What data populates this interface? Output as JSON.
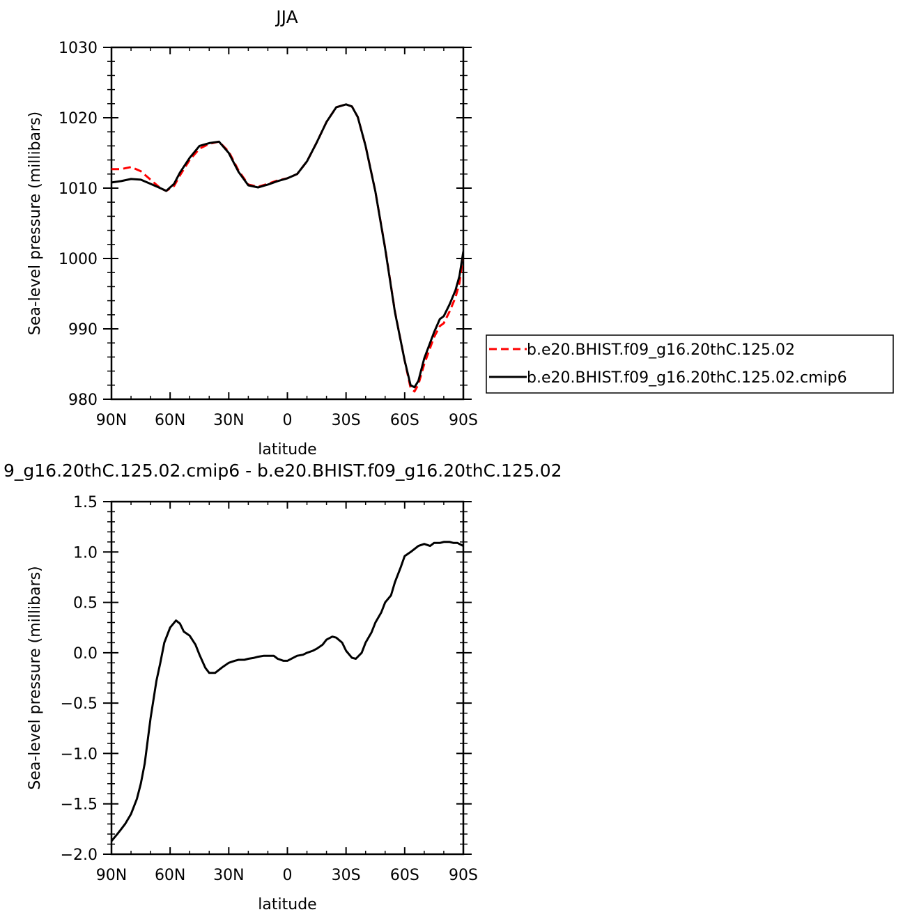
{
  "chart_data": [
    {
      "type": "line",
      "title": "JJA",
      "xlabel": "latitude",
      "ylabel": "Sea-level pressure (millibars)",
      "xlim": [
        90,
        -90
      ],
      "ylim": [
        980,
        1030
      ],
      "x_ticks": [
        90,
        60,
        30,
        0,
        -30,
        -60,
        -90
      ],
      "x_tick_labels": [
        "90N",
        "60N",
        "30N",
        "0",
        "30S",
        "60S",
        "90S"
      ],
      "y_ticks": [
        980,
        990,
        1000,
        1010,
        1020,
        1030
      ],
      "y_tick_labels": [
        "980",
        "990",
        "1000",
        "1010",
        "1020",
        "1030"
      ],
      "legend_position": "right",
      "series": [
        {
          "name": "b.e20.BHIST.f09_g16.20thC.125.02",
          "color": "#ff0000",
          "dash": "dashed",
          "x": [
            90,
            85,
            80,
            75,
            70,
            65,
            62,
            58,
            55,
            50,
            45,
            40,
            35,
            30,
            25,
            20,
            15,
            10,
            5,
            0,
            -5,
            -10,
            -15,
            -20,
            -25,
            -30,
            -33,
            -36,
            -40,
            -45,
            -50,
            -55,
            -60,
            -63,
            -65,
            -67,
            -70,
            -75,
            -78,
            -80,
            -83,
            -86,
            -88,
            -90
          ],
          "y": [
            1012.7,
            1012.7,
            1013.0,
            1012.4,
            1011.2,
            1010.0,
            1009.6,
            1010.3,
            1011.8,
            1014.0,
            1015.6,
            1016.3,
            1016.6,
            1015.2,
            1012.5,
            1010.5,
            1010.2,
            1010.6,
            1011.1,
            1011.4,
            1012.0,
            1013.8,
            1016.5,
            1019.4,
            1021.5,
            1021.9,
            1021.6,
            1020.1,
            1016.0,
            1009.5,
            1001.5,
            992.5,
            985.5,
            981.6,
            981.1,
            982.1,
            985.0,
            988.8,
            990.4,
            990.8,
            992.5,
            994.5,
            996.5,
            1000.5
          ]
        },
        {
          "name": "b.e20.BHIST.f09_g16.20thC.125.02.cmip6",
          "color": "#000000",
          "dash": "solid",
          "x": [
            90,
            85,
            80,
            75,
            70,
            65,
            62,
            58,
            55,
            50,
            45,
            40,
            35,
            30,
            25,
            20,
            15,
            10,
            5,
            0,
            -5,
            -10,
            -15,
            -20,
            -25,
            -30,
            -33,
            -36,
            -40,
            -45,
            -50,
            -55,
            -60,
            -63,
            -65,
            -67,
            -70,
            -75,
            -78,
            -80,
            -83,
            -86,
            -88,
            -90
          ],
          "y": [
            1010.8,
            1011.0,
            1011.3,
            1011.2,
            1010.6,
            1010.0,
            1009.6,
            1010.6,
            1012.2,
            1014.3,
            1016.0,
            1016.4,
            1016.6,
            1015.0,
            1012.3,
            1010.4,
            1010.1,
            1010.5,
            1011.0,
            1011.4,
            1012.0,
            1013.8,
            1016.5,
            1019.4,
            1021.5,
            1021.9,
            1021.6,
            1020.1,
            1016.0,
            1009.5,
            1001.4,
            992.4,
            985.5,
            982.0,
            981.7,
            982.6,
            985.8,
            989.5,
            991.4,
            991.8,
            993.5,
            995.5,
            997.5,
            1001.0
          ]
        }
      ]
    },
    {
      "type": "line",
      "title": "9_g16.20thC.125.02.cmip6 - b.e20.BHIST.f09_g16.20thC.125.02",
      "xlabel": "latitude",
      "ylabel": "Sea-level pressure (millibars)",
      "xlim": [
        90,
        -90
      ],
      "ylim": [
        -2.0,
        1.5
      ],
      "x_ticks": [
        90,
        60,
        30,
        0,
        -30,
        -60,
        -90
      ],
      "x_tick_labels": [
        "90N",
        "60N",
        "30N",
        "0",
        "30S",
        "60S",
        "90S"
      ],
      "y_ticks": [
        -2.0,
        -1.5,
        -1.0,
        -0.5,
        0.0,
        0.5,
        1.0,
        1.5
      ],
      "y_tick_labels": [
        "−2.0",
        "−1.5",
        "−1.0",
        "−0.5",
        "0.0",
        "0.5",
        "1.0",
        "1.5"
      ],
      "series": [
        {
          "color": "#000000",
          "dash": "solid",
          "x": [
            90,
            87,
            85,
            83,
            80,
            77,
            75,
            73,
            70,
            67,
            65,
            63,
            60,
            57,
            55,
            53,
            50,
            47,
            45,
            42,
            40,
            37,
            35,
            33,
            30,
            27,
            25,
            22,
            20,
            17,
            15,
            12,
            10,
            7,
            5,
            2,
            0,
            -3,
            -5,
            -8,
            -10,
            -13,
            -15,
            -18,
            -20,
            -23,
            -25,
            -28,
            -30,
            -33,
            -35,
            -38,
            -40,
            -43,
            -45,
            -48,
            -50,
            -53,
            -55,
            -58,
            -60,
            -63,
            -65,
            -67,
            -70,
            -73,
            -75,
            -78,
            -80,
            -83,
            -85,
            -87,
            -90
          ],
          "y": [
            -1.87,
            -1.8,
            -1.75,
            -1.7,
            -1.6,
            -1.45,
            -1.3,
            -1.1,
            -0.65,
            -0.28,
            -0.1,
            0.1,
            0.25,
            0.32,
            0.29,
            0.21,
            0.17,
            0.08,
            -0.02,
            -0.15,
            -0.2,
            -0.2,
            -0.17,
            -0.14,
            -0.1,
            -0.08,
            -0.07,
            -0.07,
            -0.06,
            -0.05,
            -0.04,
            -0.03,
            -0.03,
            -0.03,
            -0.06,
            -0.08,
            -0.08,
            -0.05,
            -0.03,
            -0.02,
            0.0,
            0.02,
            0.04,
            0.08,
            0.13,
            0.16,
            0.15,
            0.1,
            0.02,
            -0.05,
            -0.06,
            0.0,
            0.1,
            0.2,
            0.3,
            0.4,
            0.5,
            0.57,
            0.7,
            0.85,
            0.96,
            1.0,
            1.03,
            1.06,
            1.08,
            1.06,
            1.09,
            1.09,
            1.1,
            1.1,
            1.09,
            1.09,
            1.06
          ]
        }
      ]
    }
  ]
}
